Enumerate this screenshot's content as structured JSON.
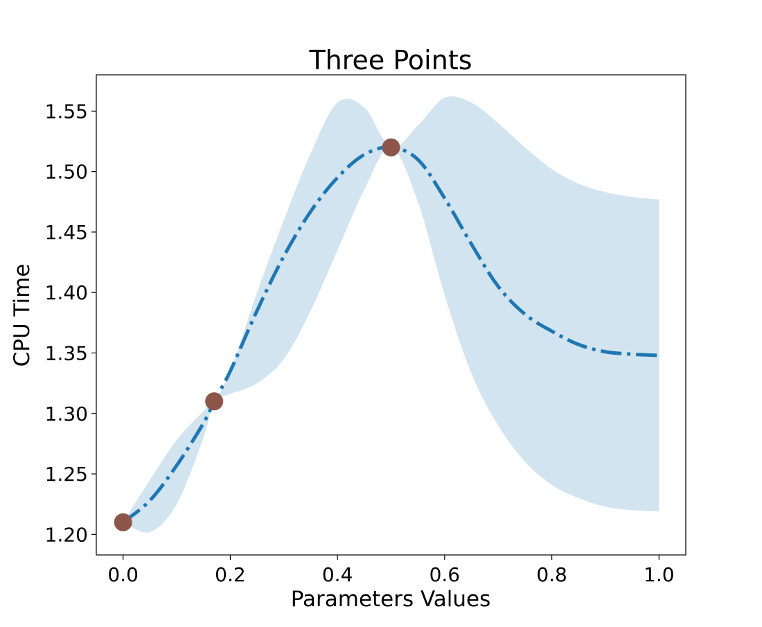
{
  "chart_data": {
    "type": "line",
    "title": "Three Points",
    "xlabel": "Parameters Values",
    "ylabel": "CPU Time",
    "xlim": [
      -0.05,
      1.05
    ],
    "ylim": [
      1.183,
      1.58
    ],
    "xticks": [
      0.0,
      0.2,
      0.4,
      0.6,
      0.8,
      1.0
    ],
    "xtick_labels": [
      "0.0",
      "0.2",
      "0.4",
      "0.6",
      "0.8",
      "1.0"
    ],
    "yticks": [
      1.2,
      1.25,
      1.3,
      1.35,
      1.4,
      1.45,
      1.5,
      1.55
    ],
    "ytick_labels": [
      "1.20",
      "1.25",
      "1.30",
      "1.35",
      "1.40",
      "1.45",
      "1.50",
      "1.55"
    ],
    "grid": false,
    "x": [
      0,
      0.05,
      0.1,
      0.15,
      0.17,
      0.2,
      0.25,
      0.3,
      0.35,
      0.4,
      0.45,
      0.5,
      0.55,
      0.6,
      0.65,
      0.7,
      0.75,
      0.8,
      0.85,
      0.9,
      0.95,
      1.0
    ],
    "mean": [
      1.21,
      1.228,
      1.257,
      1.292,
      1.31,
      1.335,
      1.385,
      1.43,
      1.467,
      1.495,
      1.514,
      1.52,
      1.51,
      1.478,
      1.44,
      1.405,
      1.382,
      1.368,
      1.357,
      1.351,
      1.349,
      1.348
    ],
    "upper": [
      1.21,
      1.245,
      1.278,
      1.302,
      1.31,
      1.335,
      1.4,
      1.46,
      1.515,
      1.557,
      1.553,
      1.52,
      1.538,
      1.561,
      1.557,
      1.54,
      1.52,
      1.502,
      1.49,
      1.483,
      1.479,
      1.477
    ],
    "lower": [
      1.21,
      1.202,
      1.225,
      1.28,
      1.31,
      1.316,
      1.325,
      1.345,
      1.385,
      1.435,
      1.485,
      1.52,
      1.475,
      1.398,
      1.333,
      1.29,
      1.26,
      1.241,
      1.23,
      1.223,
      1.22,
      1.219
    ],
    "points": [
      {
        "x": 0.0,
        "y": 1.21
      },
      {
        "x": 0.17,
        "y": 1.31
      },
      {
        "x": 0.5,
        "y": 1.52
      }
    ],
    "colors": {
      "line": "#1f77b4",
      "band": "#1f77b4",
      "band_opacity": 0.2,
      "points": "#8c564b"
    },
    "line_style": "dashdot"
  }
}
